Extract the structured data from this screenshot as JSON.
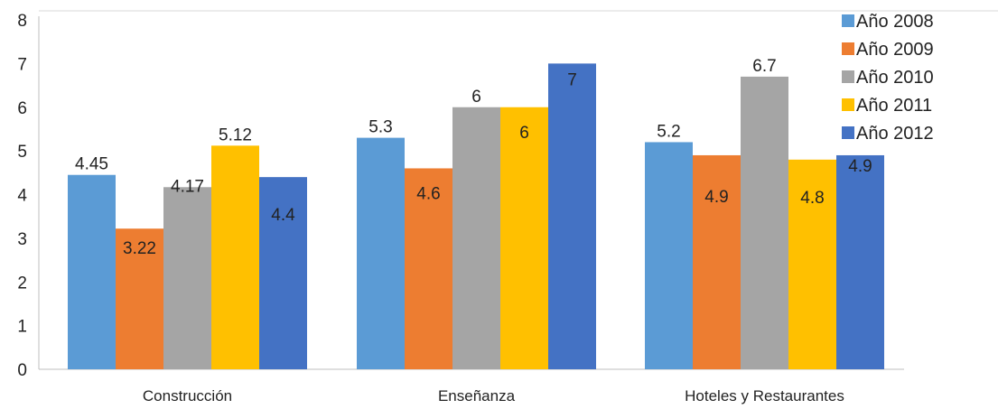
{
  "chart_data": {
    "type": "bar",
    "categories": [
      "Construcción",
      "Enseñanza",
      "Hoteles y Restaurantes"
    ],
    "series": [
      {
        "name": "Año 2008",
        "color": "#5b9bd5",
        "values": [
          4.45,
          5.3,
          5.2
        ],
        "labels": [
          "4.45",
          "5.3",
          "5.2"
        ]
      },
      {
        "name": "Año 2009",
        "color": "#ed7d31",
        "values": [
          3.22,
          4.6,
          4.9
        ],
        "labels": [
          "3.22",
          "4.6",
          "4.9"
        ]
      },
      {
        "name": "Año 2010",
        "color": "#a5a5a5",
        "values": [
          4.17,
          6,
          6.7
        ],
        "labels": [
          "4.17",
          "6",
          "6.7"
        ]
      },
      {
        "name": "Año 2011",
        "color": "#ffc000",
        "values": [
          5.12,
          6,
          4.8
        ],
        "labels": [
          "5.12",
          "6",
          "4.8"
        ]
      },
      {
        "name": "Año 2012",
        "color": "#4472c4",
        "values": [
          4.4,
          7,
          4.9
        ],
        "labels": [
          "4.4",
          "7",
          "4.9"
        ]
      }
    ],
    "yticks": [
      "0",
      "1",
      "2",
      "3",
      "4",
      "5",
      "6",
      "7",
      "8"
    ],
    "ylim": [
      0,
      8
    ],
    "grid": false,
    "legend": "top-right",
    "title": "",
    "xlabel": "",
    "ylabel": ""
  }
}
